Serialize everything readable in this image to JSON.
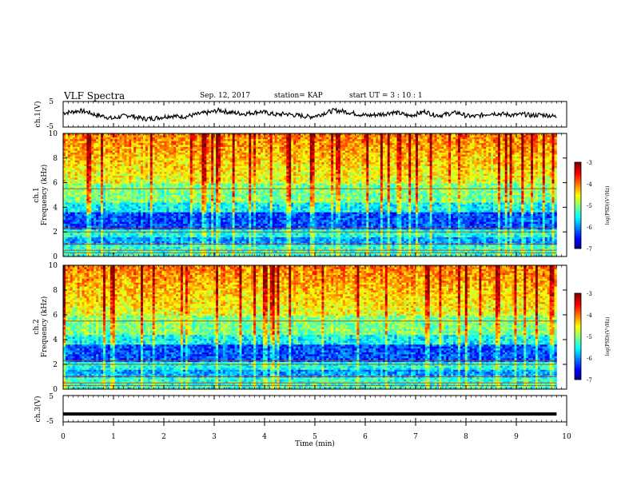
{
  "header": {
    "title": "VLF Spectra",
    "date": "Sep. 12, 2017",
    "station": "station= KAP",
    "start": "start  UT =   3  : 10 : 1"
  },
  "chart_data": [
    {
      "type": "line",
      "panel": "ch1-waveform",
      "ylabel": "ch.1(V)",
      "ylim": [
        -5,
        5
      ],
      "yticks": [
        "5",
        "-5"
      ],
      "x_range_min": [
        0,
        10
      ],
      "description_series": "noisy waveform",
      "values": [
        0.5,
        0.9,
        1.4,
        0.8,
        -0.3,
        -0.8,
        -1.7,
        -0.9,
        -0.4,
        -1.2,
        -1.8,
        -1.6,
        -1.1,
        -0.6,
        -0.9,
        -0.8,
        -0.2,
        0.4,
        0.8,
        1.6,
        0.9,
        0.5,
        0.2,
        0.6,
        1.0,
        0.4,
        -0.2,
        0.2,
        -0.3,
        -0.6,
        -1.0,
        -0.4,
        0.7,
        1.5,
        1.2,
        0.6,
        0.0,
        -0.5,
        -0.2,
        0.1,
        0.8,
        0.3,
        -0.6,
        0.1,
        1.1,
        -0.2,
        -0.4,
        0.3,
        0.6,
        -0.6,
        -0.9,
        -0.3,
        0.4,
        0.2,
        -0.1,
        -0.3,
        0.0,
        -0.5,
        -0.2,
        -0.4,
        -1.0
      ]
    },
    {
      "type": "heatmap",
      "panel": "ch1-spectrogram",
      "ylabel": "ch.1\nFrequency (kHz)",
      "ylabel_line1": "ch.1",
      "ylabel_line2": "Frequency (kHz)",
      "ylim": [
        0,
        10
      ],
      "yticks": [
        "0",
        "2",
        "4",
        "6",
        "8",
        "10"
      ],
      "colorbar": {
        "label": "log(PSD)(V²/Hz)",
        "range": [
          -7,
          -3
        ],
        "ticks": [
          "-3",
          "-4",
          "-5",
          "-6",
          "-7"
        ]
      }
    },
    {
      "type": "heatmap",
      "panel": "ch2-spectrogram",
      "ylabel_line1": "ch.2",
      "ylabel_line2": "Frequency (kHz)",
      "ylim": [
        0,
        10
      ],
      "yticks": [
        "0",
        "2",
        "4",
        "6",
        "8",
        "10"
      ],
      "colorbar": {
        "label": "log(PSD)(V²/Hz)",
        "range": [
          -7,
          -3
        ],
        "ticks": [
          "-3",
          "-4",
          "-5",
          "-6",
          "-7"
        ]
      }
    },
    {
      "type": "line",
      "panel": "ch3-waveform",
      "ylabel": "ch.3(V)",
      "ylim": [
        -5,
        5
      ],
      "yticks": [
        "5",
        "-5"
      ],
      "values": [
        -2.0,
        -2.0
      ]
    }
  ],
  "xaxis": {
    "label": "Time (min)",
    "range": [
      0,
      10
    ],
    "ticks": [
      "0",
      "1",
      "2",
      "3",
      "4",
      "5",
      "6",
      "7",
      "8",
      "9",
      "10"
    ]
  },
  "colors": {
    "frame": "#000000",
    "waveform": "#000000"
  }
}
